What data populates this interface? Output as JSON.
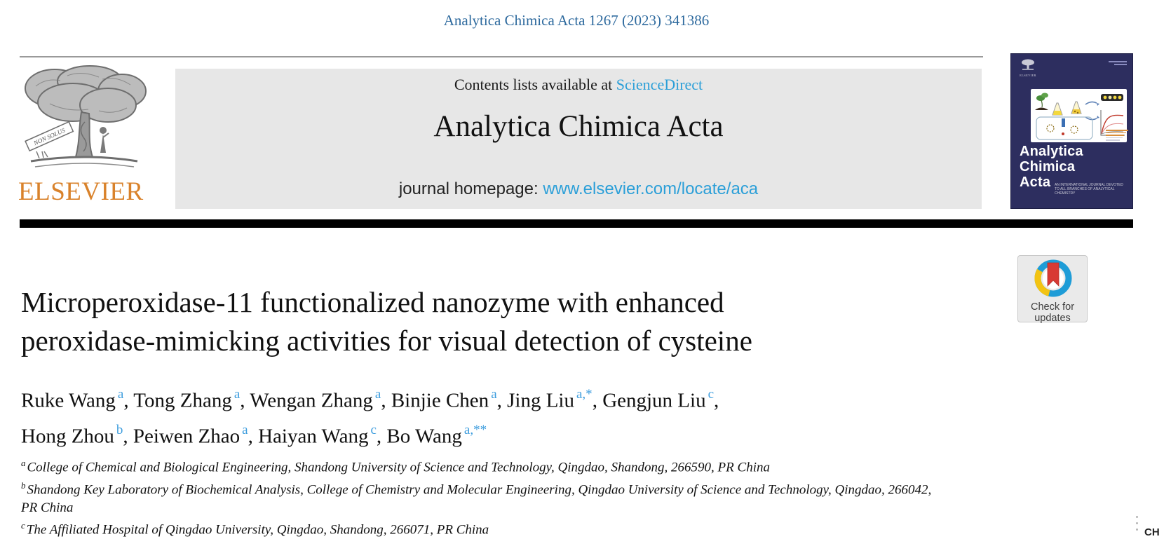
{
  "page": {
    "citation": "Analytica Chimica Acta 1267 (2023) 341386"
  },
  "banner": {
    "contents_prefix": "Contents lists available at",
    "sciencedirect_link": "ScienceDirect",
    "journal_title": "Analytica Chimica Acta",
    "homepage_label": "journal homepage:",
    "homepage_link": "www.elsevier.com/locate/aca"
  },
  "publisher": {
    "wordmark": "ELSEVIER",
    "banner_motto": "NON SOLUS"
  },
  "cover": {
    "publisher_small": "ELSEVIER",
    "title_lines": [
      "Analytica",
      "Chimica",
      "Acta"
    ],
    "tagline": "AN INTERNATIONAL JOURNAL DEVOTED TO ALL BRANCHES OF ANALYTICAL CHEMISTRY"
  },
  "update_badge": {
    "line1": "Check for",
    "line2": "updates"
  },
  "article": {
    "title_lines": [
      "Microperoxidase-11 functionalized nanozyme with enhanced",
      "peroxidase-mimicking activities for visual detection of cysteine"
    ],
    "author_lines": [
      [
        {
          "name": "Ruke Wang",
          "sup": "a",
          "trail": ","
        },
        {
          "name": "Tong Zhang",
          "sup": "a",
          "trail": ","
        },
        {
          "name": "Wengan Zhang",
          "sup": "a",
          "trail": ","
        },
        {
          "name": "Binjie Chen",
          "sup": "a",
          "trail": ","
        },
        {
          "name": "Jing Liu",
          "sup": "a,*",
          "trail": ","
        },
        {
          "name": "Gengjun Liu",
          "sup": "c",
          "trail": ","
        }
      ],
      [
        {
          "name": "Hong Zhou",
          "sup": "b",
          "trail": ","
        },
        {
          "name": "Peiwen Zhao",
          "sup": "a",
          "trail": ","
        },
        {
          "name": "Haiyan Wang",
          "sup": "c",
          "trail": ","
        },
        {
          "name": "Bo Wang",
          "sup": "a,**",
          "trail": ""
        }
      ]
    ],
    "affiliations": [
      {
        "sup": "a",
        "lines": [
          "College of Chemical and Biological Engineering, Shandong University of Science and Technology, Qingdao, Shandong, 266590, PR China"
        ]
      },
      {
        "sup": "b",
        "lines": [
          "Shandong Key Laboratory of Biochemical Analysis, College of Chemistry and Molecular Engineering, Qingdao University of Science and Technology, Qingdao, 266042,",
          "PR China"
        ]
      },
      {
        "sup": "c",
        "lines": [
          "The Affiliated Hospital of Qingdao University, Qingdao, Shandong, 266071, PR China"
        ]
      }
    ]
  },
  "corner_fragment": {
    "text": "CH"
  },
  "colors": {
    "link_blue": "#2b9fd8",
    "citation_blue": "#2e6a9e",
    "elsevier_orange": "#d9822b",
    "banner_gray": "#e7e7e7",
    "cover_navy": "#2d2e5f",
    "badge_ring_blue": "#1e9cd7",
    "badge_ring_yellow": "#f3c312",
    "badge_bookmark_red": "#d83a34",
    "separator_black": "#000000"
  }
}
